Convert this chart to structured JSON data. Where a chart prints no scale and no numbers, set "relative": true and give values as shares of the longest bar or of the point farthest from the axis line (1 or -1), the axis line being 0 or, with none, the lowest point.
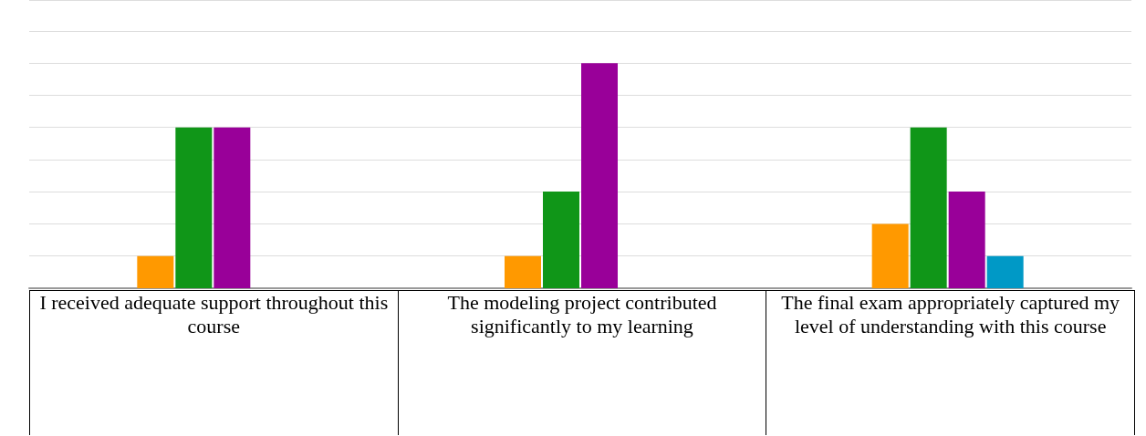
{
  "chart_data": {
    "type": "bar",
    "relative": true,
    "grid": "y",
    "categories": [
      "I received adequate support throughout this course",
      "The modeling project contributed significantly to my learning",
      "The final exam appropriately captured my level of understanding with this course"
    ],
    "series": [
      {
        "color": "#ff9900",
        "values": [
          0.143,
          0.143,
          0.286
        ]
      },
      {
        "color": "#109618",
        "values": [
          0.714,
          0.429,
          0.714
        ]
      },
      {
        "color": "#990099",
        "values": [
          0.714,
          1,
          0.429
        ]
      },
      {
        "color": "#0099c6",
        "values": [
          0,
          0,
          0.143
        ]
      }
    ]
  }
}
